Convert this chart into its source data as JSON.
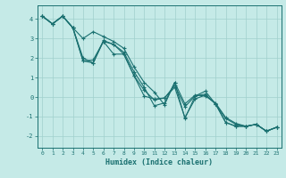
{
  "xlabel": "Humidex (Indice chaleur)",
  "bg_color": "#c5eae7",
  "grid_color": "#a0d0cc",
  "line_color": "#1a7070",
  "spine_color": "#1a7070",
  "xlim": [
    -0.5,
    23.5
  ],
  "ylim": [
    -2.6,
    4.7
  ],
  "xticks": [
    0,
    1,
    2,
    3,
    4,
    5,
    6,
    7,
    8,
    9,
    10,
    11,
    12,
    13,
    14,
    15,
    16,
    17,
    18,
    19,
    20,
    21,
    22,
    23
  ],
  "yticks": [
    -2,
    -1,
    0,
    1,
    2,
    3,
    4
  ],
  "lines": [
    [
      4.15,
      3.75,
      4.15,
      3.55,
      1.85,
      1.9,
      2.85,
      2.2,
      2.2,
      1.1,
      0.05,
      -0.1,
      -0.05,
      0.5,
      -1.05,
      -0.1,
      0.1,
      -0.35,
      -1.3,
      -1.5,
      -1.5,
      -1.4,
      -1.75,
      -1.55
    ],
    [
      4.15,
      3.75,
      4.15,
      3.55,
      1.85,
      1.75,
      2.85,
      2.7,
      2.2,
      1.1,
      0.35,
      -0.15,
      -0.05,
      0.6,
      -0.5,
      0.05,
      0.15,
      -0.35,
      -1.3,
      -1.5,
      -1.5,
      -1.4,
      -1.75,
      -1.55
    ],
    [
      4.15,
      3.75,
      4.15,
      3.55,
      2.0,
      1.75,
      2.9,
      2.7,
      2.3,
      1.3,
      0.5,
      -0.45,
      -0.3,
      0.75,
      -1.1,
      0.05,
      0.3,
      -0.35,
      -1.1,
      -1.4,
      -1.5,
      -1.4,
      -1.75,
      -1.55
    ],
    [
      4.15,
      3.75,
      4.15,
      3.55,
      3.0,
      3.35,
      3.1,
      2.85,
      2.5,
      1.55,
      0.75,
      0.25,
      -0.4,
      0.75,
      -0.35,
      0.1,
      0.05,
      -0.3,
      -1.05,
      -1.35,
      -1.5,
      -1.4,
      -1.75,
      -1.55
    ]
  ]
}
